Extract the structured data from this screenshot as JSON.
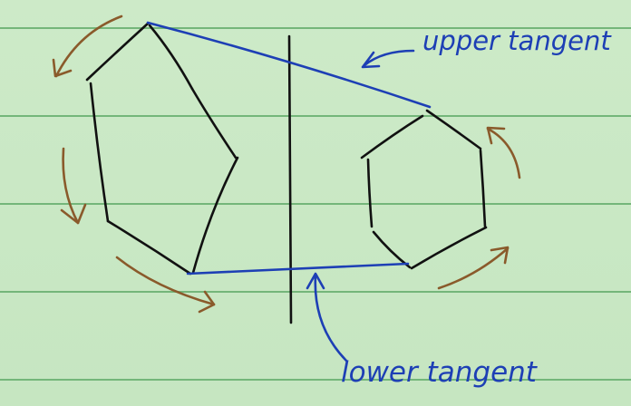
{
  "labels": {
    "upper": "upper tangent",
    "lower": "lower tangent"
  },
  "colors": {
    "background": "#c9e8c4",
    "ruled_line": "#74b67a",
    "hull_stroke": "#111111",
    "tangent": "#1d3fb5",
    "rotation_arrow": "#8a5a2b"
  },
  "elements": {
    "left_hull": "convex-hull-polygon",
    "right_hull": "convex-hull-hexagon",
    "divider": "vertical-divider-line"
  }
}
